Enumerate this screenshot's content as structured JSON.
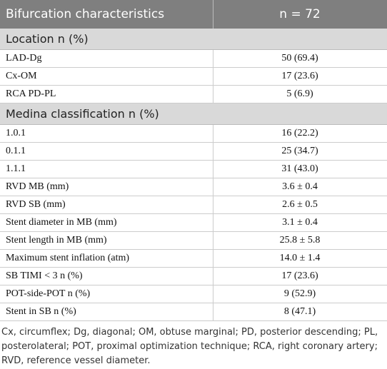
{
  "table": {
    "header": [
      "Bifurcation characteristics",
      "n = 72"
    ],
    "sections": [
      {
        "title": "Location n (%)",
        "rows": [
          [
            "LAD-Dg",
            "50 (69.4)"
          ],
          [
            "Cx-OM",
            "17 (23.6)"
          ],
          [
            "RCA PD-PL",
            "5 (6.9)"
          ]
        ]
      },
      {
        "title": "Medina classification n (%)",
        "rows": [
          [
            "1.0.1",
            "16 (22.2)"
          ],
          [
            "0.1.1",
            "25 (34.7)"
          ],
          [
            "1.1.1",
            "31 (43.0)"
          ],
          [
            "RVD MB (mm)",
            "3.6 ± 0.4"
          ],
          [
            "RVD SB (mm)",
            "2.6 ± 0.5"
          ],
          [
            "Stent diameter in MB (mm)",
            "3.1 ± 0.4"
          ],
          [
            "Stent length in MB (mm)",
            "25.8 ± 5.8"
          ],
          [
            "Maximum stent inflation (atm)",
            "14.0 ± 1.4"
          ],
          [
            "SB TIMI < 3 n (%)",
            "17 (23.6)"
          ],
          [
            "POT-side-POT n (%)",
            "9 (52.9)"
          ],
          [
            "Stent in SB n (%)",
            "8 (47.1)"
          ]
        ]
      }
    ]
  },
  "footnote": "Cx, circumflex; Dg, diagonal; OM, obtuse marginal; PD, posterior descending; PL, posterolateral; POT, proximal optimization technique; RCA, right coronary artery; RVD, reference vessel diameter."
}
